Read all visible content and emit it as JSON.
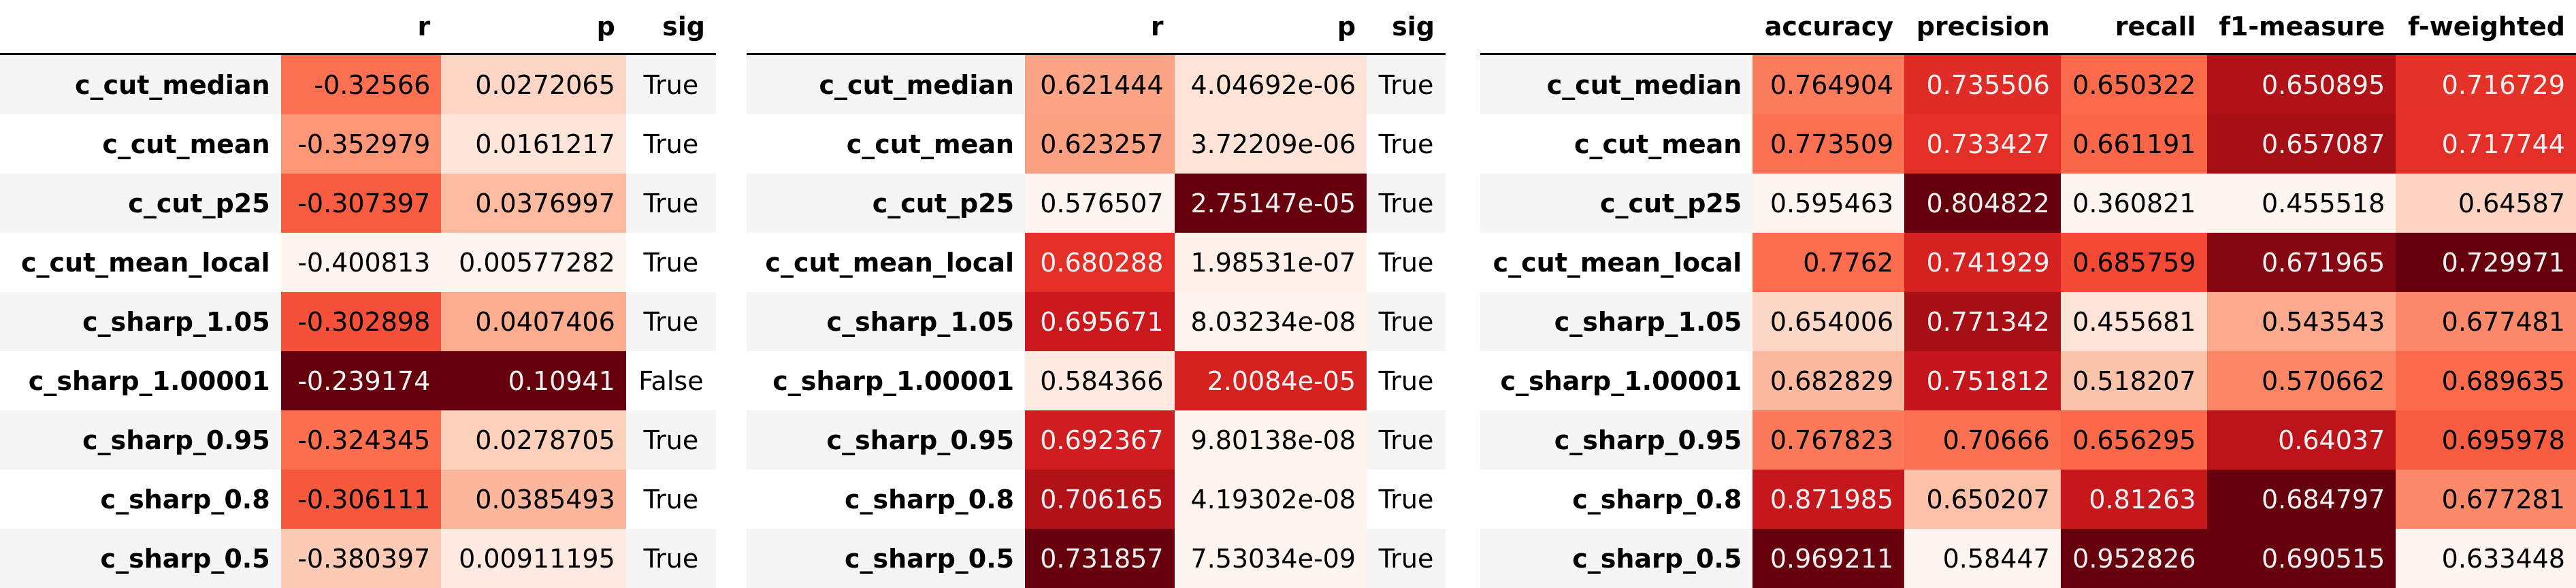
{
  "tables": [
    {
      "id": "t1",
      "columns": [
        "r",
        "p",
        "sig"
      ],
      "heat": [
        true,
        true,
        false
      ],
      "rows": [
        {
          "label": "c_cut_median",
          "values": [
            "-0.32566",
            "0.0272065",
            "True"
          ],
          "colors": [
            "#fb7050",
            "#fdd5c4",
            null
          ],
          "dark": [
            false,
            false,
            false
          ]
        },
        {
          "label": "c_cut_mean",
          "values": [
            "-0.352979",
            "0.0161217",
            "True"
          ],
          "colors": [
            "#fc9676",
            "#fee5da",
            null
          ],
          "dark": [
            false,
            false,
            false
          ]
        },
        {
          "label": "c_cut_p25",
          "values": [
            "-0.307397",
            "0.0376997",
            "True"
          ],
          "colors": [
            "#f75c41",
            "#fcbba1",
            null
          ],
          "dark": [
            false,
            false,
            false
          ]
        },
        {
          "label": "c_cut_mean_local",
          "values": [
            "-0.400813",
            "0.00577282",
            "True"
          ],
          "colors": [
            "#fff5f0",
            "#fff5f0",
            null
          ],
          "dark": [
            false,
            false,
            false
          ]
        },
        {
          "label": "c_sharp_1.05",
          "values": [
            "-0.302898",
            "0.0407406",
            "True"
          ],
          "colors": [
            "#f4503a",
            "#fcad90",
            null
          ],
          "dark": [
            false,
            false,
            false
          ]
        },
        {
          "label": "c_sharp_1.00001",
          "values": [
            "-0.239174",
            "0.10941",
            "False"
          ],
          "colors": [
            "#67000d",
            "#67000d",
            null
          ],
          "dark": [
            true,
            true,
            false
          ]
        },
        {
          "label": "c_sharp_0.95",
          "values": [
            "-0.324345",
            "0.0278705",
            "True"
          ],
          "colors": [
            "#fb6e4e",
            "#fdd0bc",
            null
          ],
          "dark": [
            false,
            false,
            false
          ]
        },
        {
          "label": "c_sharp_0.8",
          "values": [
            "-0.306111",
            "0.0385493",
            "True"
          ],
          "colors": [
            "#f6583e",
            "#fcb69b",
            null
          ],
          "dark": [
            false,
            false,
            false
          ]
        },
        {
          "label": "c_sharp_0.5",
          "values": [
            "-0.380397",
            "0.00911195",
            "True"
          ],
          "colors": [
            "#fdcab5",
            "#feeae0",
            null
          ],
          "dark": [
            false,
            false,
            false
          ]
        }
      ]
    },
    {
      "id": "t2",
      "columns": [
        "r",
        "p",
        "sig"
      ],
      "heat": [
        true,
        true,
        false
      ],
      "rows": [
        {
          "label": "c_cut_median",
          "values": [
            "0.621444",
            "4.04692e-06",
            "True"
          ],
          "colors": [
            "#fca486",
            "#fee3d7",
            null
          ],
          "dark": [
            false,
            false,
            false
          ]
        },
        {
          "label": "c_cut_mean",
          "values": [
            "0.623257",
            "3.72209e-06",
            "True"
          ],
          "colors": [
            "#fca082",
            "#fee4d8",
            null
          ],
          "dark": [
            false,
            false,
            false
          ]
        },
        {
          "label": "c_cut_p25",
          "values": [
            "0.576507",
            "2.75147e-05",
            "True"
          ],
          "colors": [
            "#fff5f0",
            "#67000d",
            null
          ],
          "dark": [
            false,
            true,
            false
          ]
        },
        {
          "label": "c_cut_mean_local",
          "values": [
            "0.680288",
            "1.98531e-07",
            "True"
          ],
          "colors": [
            "#e32f27",
            "#fff1ea",
            null
          ],
          "dark": [
            true,
            false,
            false
          ]
        },
        {
          "label": "c_sharp_1.05",
          "values": [
            "0.695671",
            "8.03234e-08",
            "True"
          ],
          "colors": [
            "#cb181d",
            "#fff3ed",
            null
          ],
          "dark": [
            true,
            false,
            false
          ]
        },
        {
          "label": "c_sharp_1.00001",
          "values": [
            "0.584366",
            "2.0084e-05",
            "True"
          ],
          "colors": [
            "#feeae1",
            "#d52221",
            null
          ],
          "dark": [
            false,
            true,
            false
          ]
        },
        {
          "label": "c_sharp_0.95",
          "values": [
            "0.692367",
            "9.80138e-08",
            "True"
          ],
          "colors": [
            "#d01d1f",
            "#fff3ed",
            null
          ],
          "dark": [
            true,
            false,
            false
          ]
        },
        {
          "label": "c_sharp_0.8",
          "values": [
            "0.706165",
            "4.19302e-08",
            "True"
          ],
          "colors": [
            "#b11218",
            "#fff4ee",
            null
          ],
          "dark": [
            true,
            false,
            false
          ]
        },
        {
          "label": "c_sharp_0.5",
          "values": [
            "0.731857",
            "7.53034e-09",
            "True"
          ],
          "colors": [
            "#67000d",
            "#fff5f0",
            null
          ],
          "dark": [
            true,
            false,
            false
          ]
        }
      ]
    },
    {
      "id": "t3",
      "columns": [
        "accuracy",
        "precision",
        "recall",
        "f1-measure",
        "f-weighted"
      ],
      "heat": [
        true,
        true,
        true,
        true,
        true
      ],
      "rows": [
        {
          "label": "c_cut_median",
          "values": [
            "0.764904",
            "0.735506",
            "0.650322",
            "0.650895",
            "0.716729"
          ],
          "colors": [
            "#fb7c5c",
            "#e02c26",
            "#fb6b4b",
            "#b11218",
            "#e53228"
          ],
          "dark": [
            false,
            true,
            false,
            true,
            true
          ]
        },
        {
          "label": "c_cut_mean",
          "values": [
            "0.773509",
            "0.733427",
            "0.661191",
            "0.657087",
            "0.717744"
          ],
          "colors": [
            "#fb7050",
            "#e32f27",
            "#fa6648",
            "#a50f15",
            "#e32f27"
          ],
          "dark": [
            false,
            true,
            false,
            true,
            true
          ]
        },
        {
          "label": "c_cut_p25",
          "values": [
            "0.595463",
            "0.804822",
            "0.360821",
            "0.455518",
            "0.64587"
          ],
          "colors": [
            "#fff5f0",
            "#67000d",
            "#fff5f0",
            "#fff5f0",
            "#fdd4c2"
          ],
          "dark": [
            false,
            true,
            false,
            false,
            false
          ]
        },
        {
          "label": "c_cut_mean_local",
          "values": [
            "0.7762",
            "0.741929",
            "0.685759",
            "0.671965",
            "0.729971"
          ],
          "colors": [
            "#fb6d4d",
            "#d52221",
            "#f34935",
            "#840711",
            "#67000d"
          ],
          "dark": [
            false,
            true,
            false,
            true,
            true
          ]
        },
        {
          "label": "c_sharp_1.05",
          "values": [
            "0.654006",
            "0.771342",
            "0.455681",
            "0.543543",
            "0.677481"
          ],
          "colors": [
            "#fdd7c6",
            "#a50f15",
            "#fee3d7",
            "#fcaa8d",
            "#fc8a6a"
          ],
          "dark": [
            false,
            true,
            false,
            false,
            false
          ]
        },
        {
          "label": "c_sharp_1.00001",
          "values": [
            "0.682829",
            "0.751812",
            "0.518207",
            "0.570662",
            "0.689635"
          ],
          "colors": [
            "#fcb99f",
            "#c4161c",
            "#fcc3ab",
            "#fc8565",
            "#fb6b4b"
          ],
          "dark": [
            false,
            true,
            false,
            false,
            false
          ]
        },
        {
          "label": "c_sharp_0.95",
          "values": [
            "0.767823",
            "0.70666",
            "0.656295",
            "0.64037",
            "0.695978"
          ],
          "colors": [
            "#fb7858",
            "#fb7050",
            "#fa6849",
            "#bc141a",
            "#f75c41"
          ],
          "dark": [
            false,
            false,
            false,
            true,
            false
          ]
        },
        {
          "label": "c_sharp_0.8",
          "values": [
            "0.871985",
            "0.650207",
            "0.81263",
            "0.684797",
            "0.677281"
          ],
          "colors": [
            "#c5171c",
            "#fcc1a8",
            "#c5171c",
            "#67000d",
            "#fc8a6a"
          ],
          "dark": [
            true,
            false,
            true,
            true,
            false
          ]
        },
        {
          "label": "c_sharp_0.5",
          "values": [
            "0.969211",
            "0.58447",
            "0.952826",
            "0.690515",
            "0.633448"
          ],
          "colors": [
            "#67000d",
            "#fff5f0",
            "#67000d",
            "#67000d",
            "#fff5f0"
          ],
          "dark": [
            true,
            false,
            true,
            true,
            false
          ]
        }
      ]
    }
  ]
}
